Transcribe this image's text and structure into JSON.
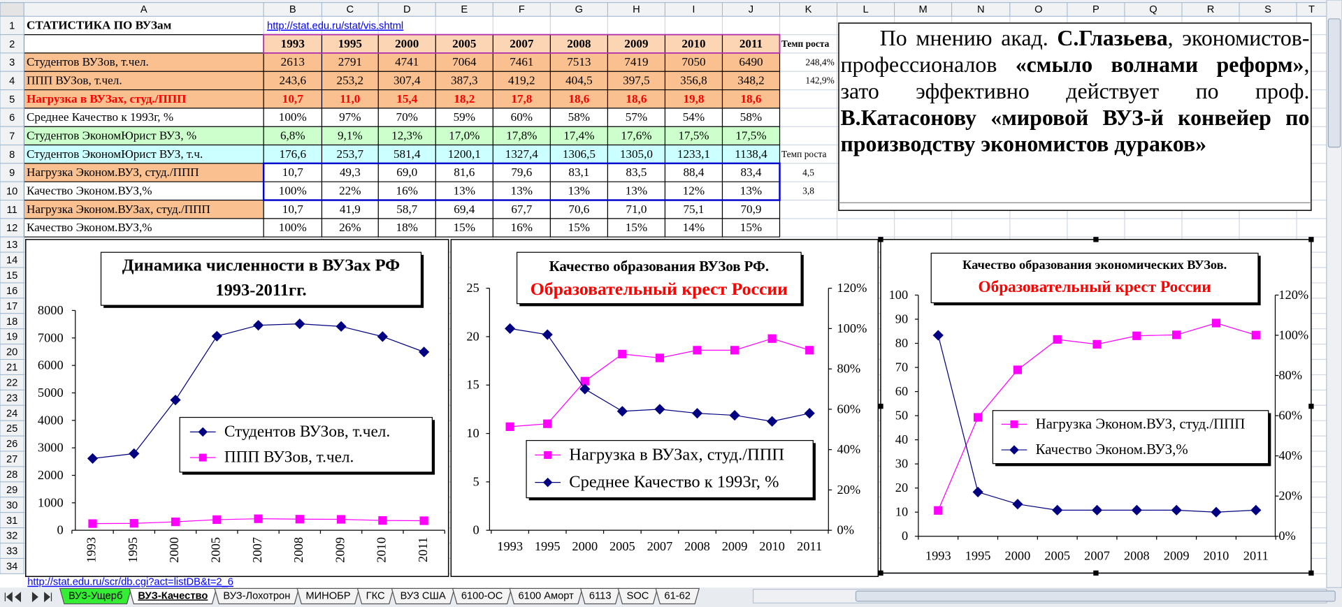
{
  "sheet": {
    "column_headers": [
      "A",
      "B",
      "C",
      "D",
      "E",
      "F",
      "G",
      "H",
      "I",
      "J",
      "K",
      "L",
      "M",
      "N",
      "O",
      "P",
      "Q",
      "R",
      "S",
      "T"
    ],
    "row_headers": [
      1,
      2,
      3,
      4,
      5,
      6,
      7,
      8,
      9,
      10,
      11,
      12,
      13,
      14,
      15,
      16,
      17,
      18,
      19,
      20,
      21,
      22,
      23,
      24,
      25,
      26,
      27,
      28,
      29,
      30,
      31,
      32,
      33,
      34
    ],
    "rows": [
      {
        "cells": {
          "A": "СТАТИСТИКА ПО ВУЗам",
          "B": "http://stat.edu.ru/stat/vis.shtml"
        }
      },
      {
        "cells": {
          "B": "1993",
          "C": "1995",
          "D": "2000",
          "E": "2005",
          "F": "2007",
          "G": "2008",
          "H": "2009",
          "I": "2010",
          "J": "2011",
          "K": "Темп роста"
        }
      },
      {
        "cells": {
          "A": "Студентов ВУЗов, т.чел.",
          "B": "2613",
          "C": "2791",
          "D": "4741",
          "E": "7064",
          "F": "7461",
          "G": "7513",
          "H": "7419",
          "I": "7050",
          "J": "6490",
          "K": "248,4%"
        }
      },
      {
        "cells": {
          "A": "ППП ВУЗов, т.чел.",
          "B": "243,6",
          "C": "253,2",
          "D": "307,4",
          "E": "387,3",
          "F": "419,2",
          "G": "404,5",
          "H": "397,5",
          "I": "356,8",
          "J": "348,2",
          "K": "142,9%"
        }
      },
      {
        "cells": {
          "A": "Нагрузка в ВУЗах, студ./ППП",
          "B": "10,7",
          "C": "11,0",
          "D": "15,4",
          "E": "18,2",
          "F": "17,8",
          "G": "18,6",
          "H": "18,6",
          "I": "19,8",
          "J": "18,6"
        }
      },
      {
        "cells": {
          "A": "Среднее Качество к 1993г, %",
          "B": "100%",
          "C": "97%",
          "D": "70%",
          "E": "59%",
          "F": "60%",
          "G": "58%",
          "H": "57%",
          "I": "54%",
          "J": "58%"
        }
      },
      {
        "cells": {
          "A": "Студентов ЭкономЮрист ВУЗ, %",
          "B": "6,8%",
          "C": "9,1%",
          "D": "12,3%",
          "E": "17,0%",
          "F": "17,8%",
          "G": "17,4%",
          "H": "17,6%",
          "I": "17,5%",
          "J": "17,5%"
        }
      },
      {
        "cells": {
          "A": "Студентов ЭкономЮрист ВУЗ, т.ч.",
          "B": "176,6",
          "C": "253,7",
          "D": "581,4",
          "E": "1200,1",
          "F": "1327,4",
          "G": "1306,5",
          "H": "1305,0",
          "I": "1233,1",
          "J": "1138,4",
          "K": "Темп роста"
        }
      },
      {
        "cells": {
          "A": "Нагрузка Эконом.ВУЗ, студ./ППП",
          "B": "10,7",
          "C": "49,3",
          "D": "69,0",
          "E": "81,6",
          "F": "79,6",
          "G": "83,1",
          "H": "83,5",
          "I": "88,4",
          "J": "83,4",
          "K": "4,5"
        }
      },
      {
        "cells": {
          "A": "Качество Эконом.ВУЗ,%",
          "B": "100%",
          "C": "22%",
          "D": "16%",
          "E": "13%",
          "F": "13%",
          "G": "13%",
          "H": "13%",
          "I": "12%",
          "J": "13%",
          "K": "3,8"
        }
      },
      {
        "cells": {
          "A": "Нагрузка Эконом.ВУЗах, студ./ППП",
          "B": "10,7",
          "C": "41,9",
          "D": "58,7",
          "E": "69,4",
          "F": "67,7",
          "G": "70,6",
          "H": "71,0",
          "I": "75,1",
          "J": "70,9"
        }
      },
      {
        "cells": {
          "A": "Качество Эконом.ВУЗ,%",
          "B": "100%",
          "C": "26%",
          "D": "18%",
          "E": "15%",
          "F": "16%",
          "G": "15%",
          "H": "15%",
          "I": "14%",
          "J": "15%"
        }
      }
    ],
    "text_box": {
      "segments": [
        {
          "text": "По мнению акад. ",
          "bold": false
        },
        {
          "text": "С.Глазьева",
          "bold": true
        },
        {
          "text": ", экономистов-профессионалов ",
          "bold": false
        },
        {
          "text": "«смыло волнами реформ»",
          "bold": true
        },
        {
          "text": ", зато эффективно действует по проф. ",
          "bold": false
        },
        {
          "text": "В.Катасонову «мировой ВУЗ-й конвейер по производству экономистов дураков»",
          "bold": true
        }
      ]
    },
    "footer_link": "http://stat.edu.ru/scr/db.cgi?act=listDB&t=2_6",
    "tabs": [
      "ВУЗ-Ущерб",
      "ВУЗ-Качество",
      "ВУЗ-Лохотрон",
      "МИНОБР",
      "ГКС",
      "ВУЗ США",
      "6100-ОС",
      "6100 Аморт",
      "6113",
      "SOC",
      "61-62"
    ],
    "active_tab": 1
  },
  "chart_data": [
    {
      "type": "line",
      "title": [
        "Динамика численности в ВУЗах РФ",
        "1993-2011гг."
      ],
      "categories": [
        "1993",
        "1995",
        "2000",
        "2005",
        "2007",
        "2008",
        "2009",
        "2010",
        "2011"
      ],
      "ylim": [
        0,
        8000
      ],
      "yticks": [
        0,
        1000,
        2000,
        3000,
        4000,
        5000,
        6000,
        7000,
        8000
      ],
      "grid": false,
      "series": [
        {
          "name": "Студентов ВУЗов, т.чел.",
          "color": "#000080",
          "marker": "diamond",
          "values": [
            2613,
            2791,
            4741,
            7064,
            7461,
            7513,
            7419,
            7050,
            6490
          ]
        },
        {
          "name": "ППП ВУЗов, т.чел.",
          "color": "#ff00ff",
          "marker": "square",
          "values": [
            243.6,
            253.2,
            307.4,
            387.3,
            419.2,
            404.5,
            397.5,
            356.8,
            348.2
          ]
        }
      ]
    },
    {
      "type": "line",
      "title": [
        "Качество образования ВУЗов РФ."
      ],
      "subtitle": "Образовательный крест России",
      "subtitle_color": "#ff0000",
      "categories": [
        "1993",
        "1995",
        "2000",
        "2005",
        "2007",
        "2008",
        "2009",
        "2010",
        "2011"
      ],
      "ylim": [
        0,
        25
      ],
      "yticks": [
        0,
        5,
        10,
        15,
        20,
        25
      ],
      "y2lim": [
        0,
        120
      ],
      "y2ticks": [
        {
          "value": 0,
          "label": "0%"
        },
        {
          "value": 20,
          "label": "20%"
        },
        {
          "value": 40,
          "label": "40%"
        },
        {
          "value": 60,
          "label": "60%"
        },
        {
          "value": 80,
          "label": "80%"
        },
        {
          "value": 100,
          "label": "100%"
        },
        {
          "value": 120,
          "label": "120%"
        }
      ],
      "grid": false,
      "series": [
        {
          "name": "Нагрузка в ВУЗах, студ./ППП",
          "color": "#ff00ff",
          "marker": "square",
          "values": [
            10.7,
            11.0,
            15.4,
            18.2,
            17.8,
            18.6,
            18.6,
            19.8,
            18.6
          ]
        },
        {
          "name": "Среднее Качество к 1993г, %",
          "color": "#000080",
          "marker": "diamond",
          "axis": "y2",
          "values": [
            100,
            97,
            70,
            59,
            60,
            58,
            57,
            54,
            58
          ]
        }
      ]
    },
    {
      "type": "line",
      "title": [
        "Качество образования экономических ВУЗов."
      ],
      "subtitle": "Образовательный крест России",
      "subtitle_color": "#ff0000",
      "categories": [
        "1993",
        "1995",
        "2000",
        "2005",
        "2007",
        "2008",
        "2009",
        "2010",
        "2011"
      ],
      "ylim": [
        0,
        100
      ],
      "yticks": [
        0,
        10,
        20,
        30,
        40,
        50,
        60,
        70,
        80,
        90,
        100
      ],
      "y2lim": [
        0,
        120
      ],
      "y2ticks": [
        {
          "value": 0,
          "label": "0%"
        },
        {
          "value": 20,
          "label": "20%"
        },
        {
          "value": 40,
          "label": "40%"
        },
        {
          "value": 60,
          "label": "60%"
        },
        {
          "value": 80,
          "label": "80%"
        },
        {
          "value": 100,
          "label": "100%"
        },
        {
          "value": 120,
          "label": "120%"
        }
      ],
      "grid": false,
      "series": [
        {
          "name": "Нагрузка Эконом.ВУЗ, студ./ППП",
          "color": "#ff00ff",
          "marker": "square",
          "values": [
            10.7,
            49.3,
            69.0,
            81.6,
            79.6,
            83.1,
            83.5,
            88.4,
            83.4
          ]
        },
        {
          "name": "Качество Эконом.ВУЗ,%",
          "color": "#000080",
          "marker": "diamond",
          "axis": "y2",
          "values": [
            100,
            22,
            16,
            13,
            13,
            13,
            13,
            12,
            13
          ]
        }
      ]
    }
  ]
}
